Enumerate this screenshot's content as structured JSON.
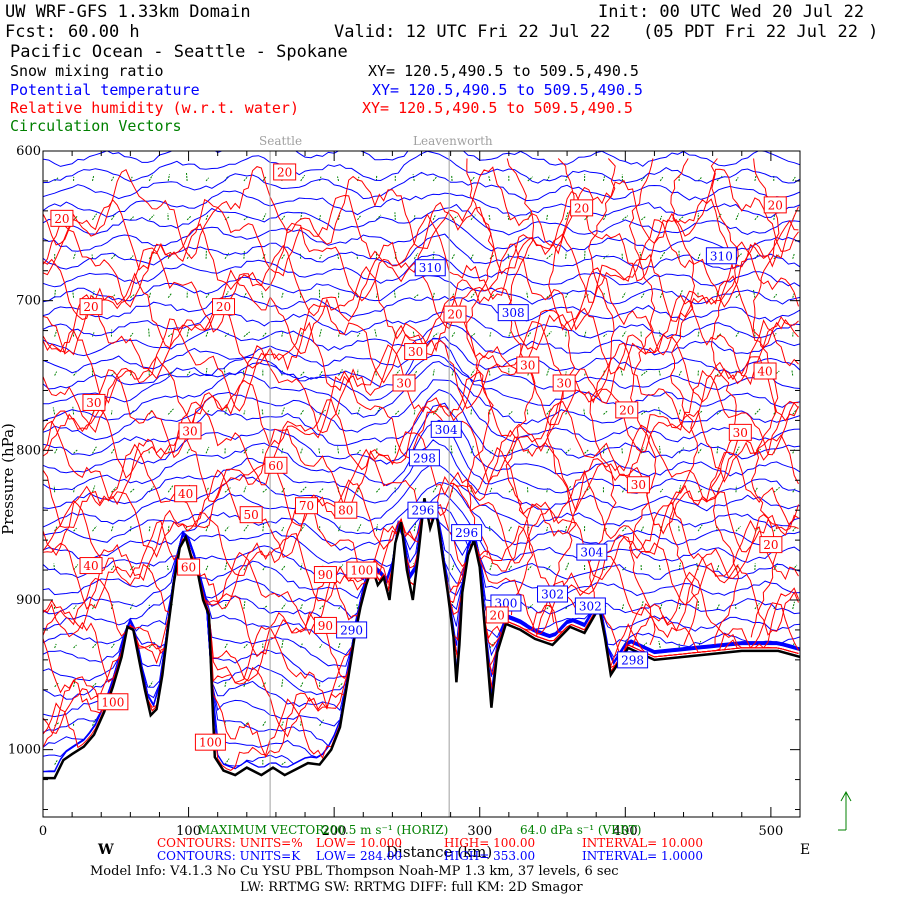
{
  "header": {
    "model": "UW WRF-GFS 1.33km Domain",
    "init": "Init: 00 UTC Wed 20 Jul 22",
    "fcst_label": "Fcst:",
    "fcst_value": "60.00 h",
    "valid": "Valid: 12 UTC Fri 22 Jul 22",
    "valid_local": "(05 PDT Fri 22 Jul 22  )",
    "region": "Pacific Ocean - Seattle - Spokane"
  },
  "fields": [
    {
      "name": "Snow mixing ratio",
      "xy": "XY= 120.5,490.5 to 509.5,490.5",
      "color": "#000000"
    },
    {
      "name": "Potential temperature",
      "xy": "XY= 120.5,490.5 to 509.5,490.5",
      "color": "#0000ff"
    },
    {
      "name": "Relative humidity (w.r.t. water)",
      "xy": "XY= 120.5,490.5 to 509.5,490.5",
      "color": "#ff0000"
    },
    {
      "name": "Circulation Vectors",
      "xy": "",
      "color": "#008000"
    }
  ],
  "places": [
    {
      "name": "Seattle",
      "x": 156
    },
    {
      "name": "Leavenworth",
      "x": 279
    }
  ],
  "chart_data": {
    "type": "contour",
    "xlabel": "Distance (km)",
    "ylabel": "Pressure (hPa)",
    "xlim": [
      0,
      520
    ],
    "ylim": [
      1045,
      600
    ],
    "x_ticks": [
      0,
      100,
      200,
      300,
      400,
      500
    ],
    "y_ticks": [
      600,
      700,
      800,
      900,
      1000
    ],
    "y_tick_labels": [
      "600",
      "700",
      "800",
      "900",
      "1000"
    ],
    "x_end_labels": {
      "west": "W",
      "east": "E"
    },
    "terrain_pressure": [
      [
        0,
        1019
      ],
      [
        8,
        1019
      ],
      [
        14,
        1007
      ],
      [
        20,
        1003
      ],
      [
        28,
        998
      ],
      [
        35,
        990
      ],
      [
        42,
        975
      ],
      [
        48,
        958
      ],
      [
        54,
        938
      ],
      [
        58,
        918
      ],
      [
        62,
        920
      ],
      [
        66,
        940
      ],
      [
        70,
        960
      ],
      [
        74,
        977
      ],
      [
        78,
        973
      ],
      [
        82,
        950
      ],
      [
        86,
        918
      ],
      [
        90,
        888
      ],
      [
        94,
        865
      ],
      [
        98,
        858
      ],
      [
        102,
        872
      ],
      [
        106,
        880
      ],
      [
        110,
        900
      ],
      [
        114,
        910
      ],
      [
        116,
        960
      ],
      [
        118,
        1005
      ],
      [
        124,
        1014
      ],
      [
        132,
        1017
      ],
      [
        140,
        1012
      ],
      [
        150,
        1017
      ],
      [
        158,
        1012
      ],
      [
        166,
        1017
      ],
      [
        174,
        1013
      ],
      [
        182,
        1009
      ],
      [
        190,
        1010
      ],
      [
        198,
        1000
      ],
      [
        204,
        985
      ],
      [
        210,
        950
      ],
      [
        214,
        925
      ],
      [
        218,
        905
      ],
      [
        222,
        890
      ],
      [
        226,
        878
      ],
      [
        230,
        890
      ],
      [
        234,
        885
      ],
      [
        238,
        900
      ],
      [
        242,
        862
      ],
      [
        246,
        848
      ],
      [
        250,
        880
      ],
      [
        254,
        900
      ],
      [
        258,
        868
      ],
      [
        262,
        832
      ],
      [
        266,
        852
      ],
      [
        270,
        840
      ],
      [
        274,
        868
      ],
      [
        278,
        895
      ],
      [
        282,
        925
      ],
      [
        284,
        955
      ],
      [
        286,
        930
      ],
      [
        288,
        895
      ],
      [
        292,
        870
      ],
      [
        296,
        860
      ],
      [
        300,
        878
      ],
      [
        304,
        925
      ],
      [
        308,
        972
      ],
      [
        312,
        935
      ],
      [
        318,
        916
      ],
      [
        328,
        920
      ],
      [
        338,
        926
      ],
      [
        350,
        930
      ],
      [
        362,
        918
      ],
      [
        372,
        922
      ],
      [
        382,
        905
      ],
      [
        386,
        925
      ],
      [
        390,
        950
      ],
      [
        394,
        944
      ],
      [
        402,
        932
      ],
      [
        420,
        940
      ],
      [
        450,
        937
      ],
      [
        480,
        934
      ],
      [
        505,
        934
      ],
      [
        520,
        938
      ]
    ],
    "theta_contours_K": {
      "low": 284.0,
      "high": 353.0,
      "interval": 1.0,
      "labels": [
        {
          "value": "310",
          "x": 266,
          "p": 678
        },
        {
          "value": "310",
          "x": 466,
          "p": 670
        },
        {
          "value": "308",
          "x": 323,
          "p": 708
        },
        {
          "value": "304",
          "x": 277,
          "p": 786
        },
        {
          "value": "298",
          "x": 262,
          "p": 805
        },
        {
          "value": "296",
          "x": 261,
          "p": 840
        },
        {
          "value": "296",
          "x": 291,
          "p": 855
        },
        {
          "value": "304",
          "x": 377,
          "p": 868
        },
        {
          "value": "302",
          "x": 350,
          "p": 896
        },
        {
          "value": "302",
          "x": 376,
          "p": 904
        },
        {
          "value": "300",
          "x": 318,
          "p": 902
        },
        {
          "value": "290",
          "x": 212,
          "p": 920
        },
        {
          "value": "298",
          "x": 405,
          "p": 940
        }
      ]
    },
    "rh_contours_pct": {
      "low": 10.0,
      "high": 100.0,
      "interval": 10.0,
      "labels": [
        {
          "value": "20",
          "x": 166,
          "p": 614
        },
        {
          "value": "20",
          "x": 13,
          "p": 645
        },
        {
          "value": "20",
          "x": 33,
          "p": 704
        },
        {
          "value": "20",
          "x": 124,
          "p": 704
        },
        {
          "value": "20",
          "x": 283,
          "p": 709
        },
        {
          "value": "20",
          "x": 370,
          "p": 638
        },
        {
          "value": "20",
          "x": 503,
          "p": 636
        },
        {
          "value": "20",
          "x": 401,
          "p": 773
        },
        {
          "value": "20",
          "x": 500,
          "p": 863
        },
        {
          "value": "30",
          "x": 35,
          "p": 768
        },
        {
          "value": "30",
          "x": 101,
          "p": 787
        },
        {
          "value": "30",
          "x": 256,
          "p": 734
        },
        {
          "value": "30",
          "x": 333,
          "p": 743
        },
        {
          "value": "30",
          "x": 358,
          "p": 755
        },
        {
          "value": "30",
          "x": 479,
          "p": 788
        },
        {
          "value": "30",
          "x": 409,
          "p": 823
        },
        {
          "value": "30",
          "x": 248,
          "p": 755
        },
        {
          "value": "40",
          "x": 496,
          "p": 747
        },
        {
          "value": "40",
          "x": 98,
          "p": 829
        },
        {
          "value": "40",
          "x": 33,
          "p": 877
        },
        {
          "value": "50",
          "x": 143,
          "p": 843
        },
        {
          "value": "60",
          "x": 160,
          "p": 810
        },
        {
          "value": "60",
          "x": 100,
          "p": 878
        },
        {
          "value": "70",
          "x": 181,
          "p": 837
        },
        {
          "value": "80",
          "x": 208,
          "p": 840
        },
        {
          "value": "90",
          "x": 194,
          "p": 883
        },
        {
          "value": "90",
          "x": 194,
          "p": 917
        },
        {
          "value": "100",
          "x": 219,
          "p": 880
        },
        {
          "value": "100",
          "x": 48,
          "p": 968
        },
        {
          "value": "100",
          "x": 115,
          "p": 995
        },
        {
          "value": "20",
          "x": 312,
          "p": 910
        }
      ]
    },
    "max_vector": {
      "horiz": "200.5 m s⁻¹ (HORIZ)",
      "vert": "64.0 dPa s⁻¹ (VERT)"
    }
  },
  "footer": {
    "max_vector_label": "MAXIMUM VECTOR:",
    "max_vector_horiz": "200.5 m s⁻¹ (HORIZ)",
    "max_vector_vert": "64.0 dPa s⁻¹ (VERT)",
    "contours_red": {
      "units": "CONTOURS:  UNITS=%",
      "low": "LOW=   10.000",
      "high": "HIGH=   100.00",
      "interval": "INTERVAL=    10.000"
    },
    "contours_blue": {
      "units": "CONTOURS:  UNITS=K",
      "low": "LOW=   284.00",
      "high": "HIGH=   353.00",
      "interval": "INTERVAL=    1.0000"
    },
    "model_info": "Model Info: V4.1.3    No Cu    YSU PBL   Thompson     Noah-MP    1.3 km,   37 levels,     6 sec",
    "model_info2": "LW: RRTMG  SW: RRTMG    DIFF: full    KM: 2D Smagor"
  },
  "colors": {
    "theta": "#0000ff",
    "rh": "#ff0000",
    "vectors": "#008000",
    "terrain": "#000000",
    "places": "#a0a0a0"
  }
}
